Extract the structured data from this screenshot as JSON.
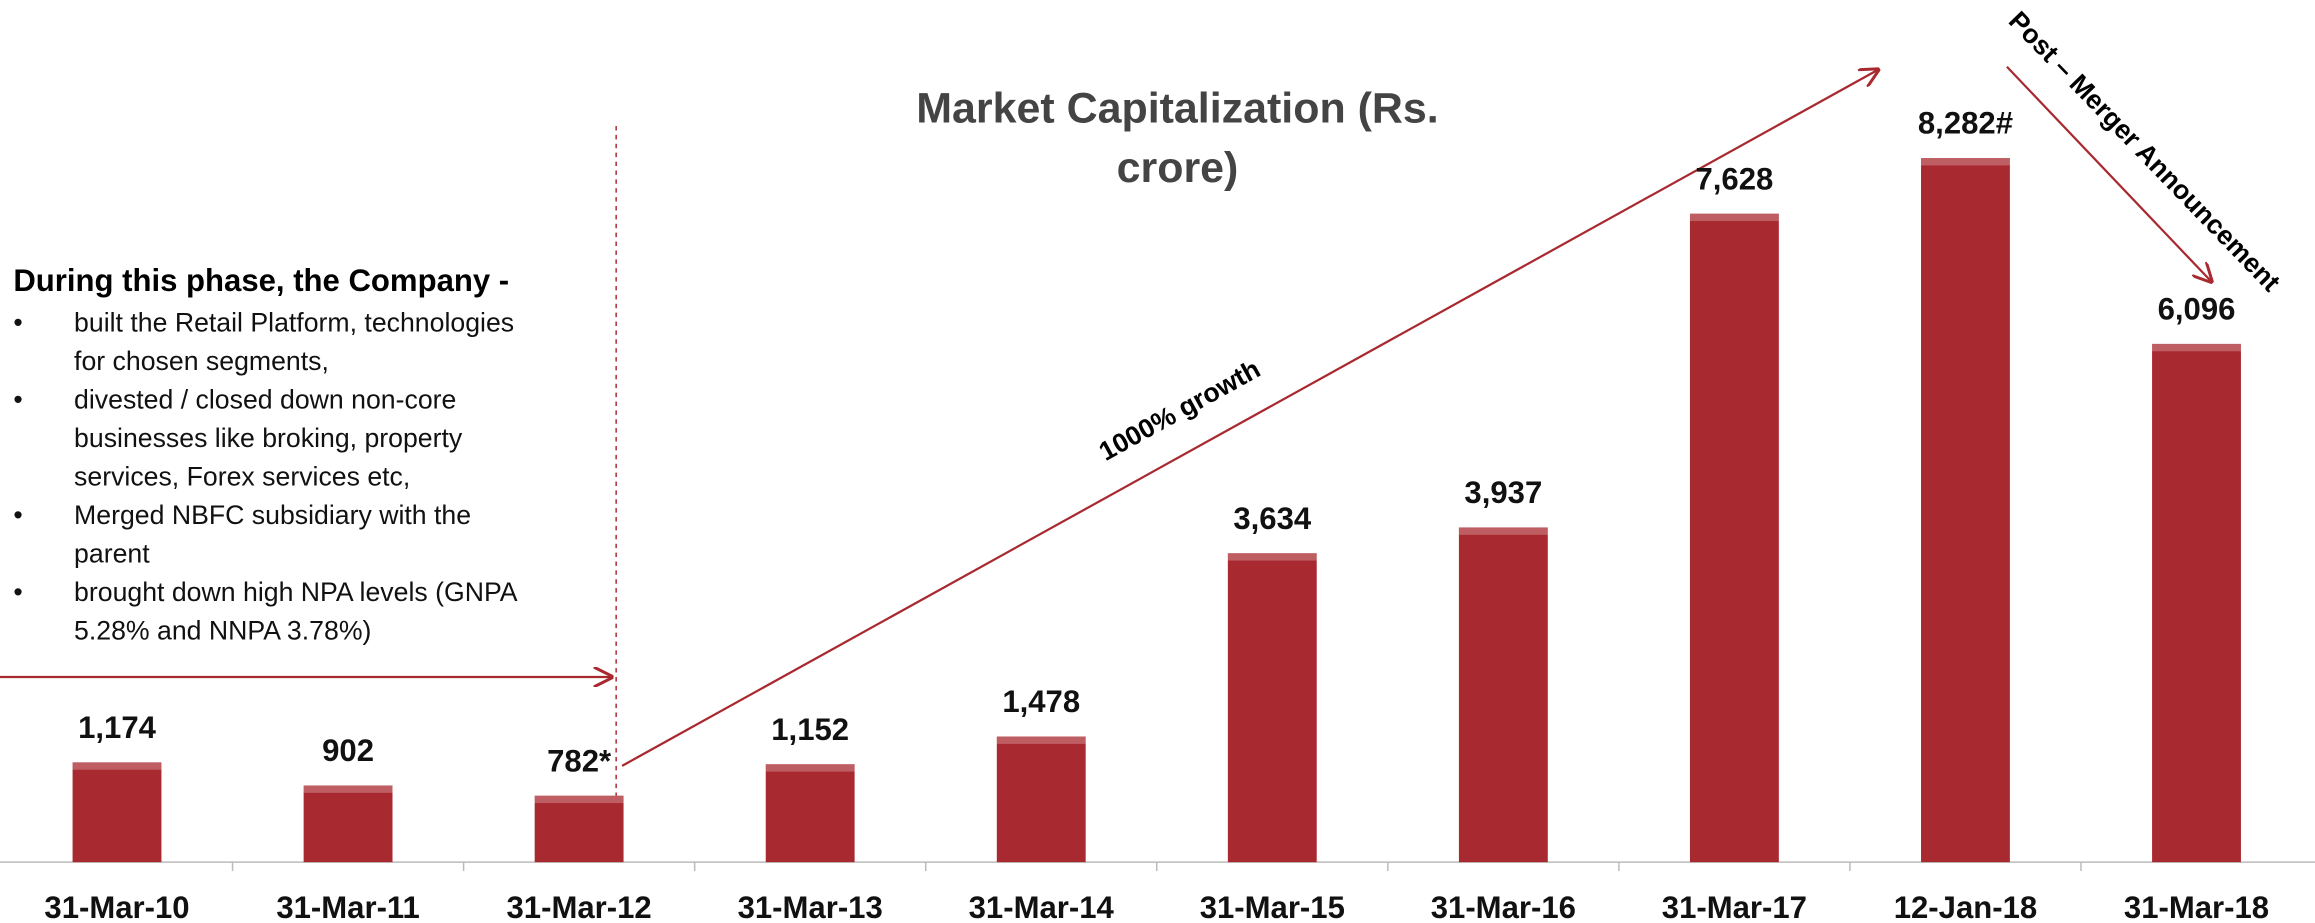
{
  "chart_data": {
    "type": "bar",
    "title": [
      "Market Capitalization (Rs.",
      "crore)"
    ],
    "categories": [
      "31-Mar-10",
      "31-Mar-11",
      "31-Mar-12",
      "31-Mar-13",
      "31-Mar-14",
      "31-Mar-15",
      "31-Mar-16",
      "31-Mar-17",
      "12-Jan-18",
      "31-Mar-18"
    ],
    "values": [
      1174,
      902,
      782,
      1152,
      1478,
      3634,
      3937,
      7628,
      8282,
      6096
    ],
    "value_labels": [
      "1,174",
      "902",
      "782*",
      "1,152",
      "1,478",
      "3,634",
      "3,937",
      "7,628",
      "8,282#",
      "6,096"
    ],
    "color": "#a8292f",
    "ylim": [
      0,
      10000
    ],
    "annotations": {
      "phase_heading": "During this phase, the Company -",
      "bullets": [
        [
          "built the Retail Platform, technologies",
          "for chosen segments,"
        ],
        [
          "divested / closed down non-core",
          "businesses like broking, property",
          "services, Forex services etc,"
        ],
        [
          "Merged NBFC subsidiary with the",
          "parent"
        ],
        [
          "brought down high NPA levels (GNPA",
          "5.28% and NNPA 3.78%)"
        ]
      ],
      "growth": "1000% growth",
      "post_merger": "Post – Merger Announcement"
    }
  }
}
